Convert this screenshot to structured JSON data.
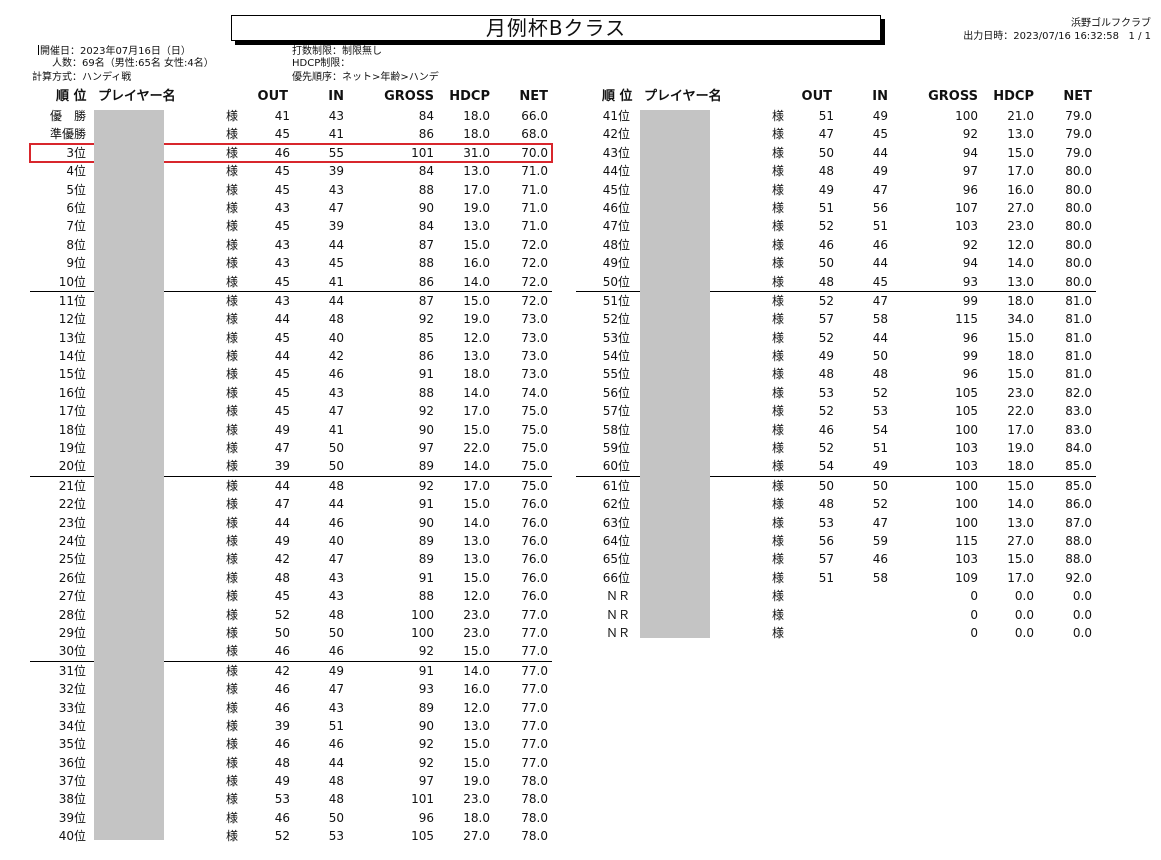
{
  "header": {
    "title": "月例杯Bクラス",
    "club": "浜野ゴルフクラブ",
    "output_label": "出力日時：2023/07/16 16:32:58",
    "page": "1 / 1"
  },
  "meta": {
    "date": "開催日：2023年07月16日（日）",
    "count": "人数：69名（男性:65名 女性:4名）",
    "method": "計算方式：ハンディ戦",
    "stroke_limit": "打数制限：制限無し",
    "hdcp_limit": "HDCP制限：",
    "priority": "優先順序：ネット>年齢>ハンデ"
  },
  "columns": {
    "rank": "順 位",
    "name": "プレイヤー名",
    "out": "OUT",
    "in": "IN",
    "gross": "GROSS",
    "hdcp": "HDCP",
    "net": "NET"
  },
  "honorific": "様",
  "left_rows": [
    {
      "rank": "優　勝",
      "out": "41",
      "in": "43",
      "gross": "84",
      "hdcp": "18.0",
      "net": "66.0"
    },
    {
      "rank": "準優勝",
      "out": "45",
      "in": "41",
      "gross": "86",
      "hdcp": "18.0",
      "net": "68.0"
    },
    {
      "rank": "3位",
      "out": "46",
      "in": "55",
      "gross": "101",
      "hdcp": "31.0",
      "net": "70.0"
    },
    {
      "rank": "4位",
      "out": "45",
      "in": "39",
      "gross": "84",
      "hdcp": "13.0",
      "net": "71.0"
    },
    {
      "rank": "5位",
      "out": "45",
      "in": "43",
      "gross": "88",
      "hdcp": "17.0",
      "net": "71.0"
    },
    {
      "rank": "6位",
      "out": "43",
      "in": "47",
      "gross": "90",
      "hdcp": "19.0",
      "net": "71.0"
    },
    {
      "rank": "7位",
      "out": "45",
      "in": "39",
      "gross": "84",
      "hdcp": "13.0",
      "net": "71.0"
    },
    {
      "rank": "8位",
      "out": "43",
      "in": "44",
      "gross": "87",
      "hdcp": "15.0",
      "net": "72.0"
    },
    {
      "rank": "9位",
      "out": "43",
      "in": "45",
      "gross": "88",
      "hdcp": "16.0",
      "net": "72.0"
    },
    {
      "rank": "10位",
      "out": "45",
      "in": "41",
      "gross": "86",
      "hdcp": "14.0",
      "net": "72.0"
    },
    {
      "rank": "11位",
      "out": "43",
      "in": "44",
      "gross": "87",
      "hdcp": "15.0",
      "net": "72.0"
    },
    {
      "rank": "12位",
      "out": "44",
      "in": "48",
      "gross": "92",
      "hdcp": "19.0",
      "net": "73.0"
    },
    {
      "rank": "13位",
      "out": "45",
      "in": "40",
      "gross": "85",
      "hdcp": "12.0",
      "net": "73.0"
    },
    {
      "rank": "14位",
      "out": "44",
      "in": "42",
      "gross": "86",
      "hdcp": "13.0",
      "net": "73.0"
    },
    {
      "rank": "15位",
      "out": "45",
      "in": "46",
      "gross": "91",
      "hdcp": "18.0",
      "net": "73.0"
    },
    {
      "rank": "16位",
      "out": "45",
      "in": "43",
      "gross": "88",
      "hdcp": "14.0",
      "net": "74.0"
    },
    {
      "rank": "17位",
      "out": "45",
      "in": "47",
      "gross": "92",
      "hdcp": "17.0",
      "net": "75.0"
    },
    {
      "rank": "18位",
      "out": "49",
      "in": "41",
      "gross": "90",
      "hdcp": "15.0",
      "net": "75.0"
    },
    {
      "rank": "19位",
      "out": "47",
      "in": "50",
      "gross": "97",
      "hdcp": "22.0",
      "net": "75.0"
    },
    {
      "rank": "20位",
      "out": "39",
      "in": "50",
      "gross": "89",
      "hdcp": "14.0",
      "net": "75.0"
    },
    {
      "rank": "21位",
      "out": "44",
      "in": "48",
      "gross": "92",
      "hdcp": "17.0",
      "net": "75.0"
    },
    {
      "rank": "22位",
      "out": "47",
      "in": "44",
      "gross": "91",
      "hdcp": "15.0",
      "net": "76.0"
    },
    {
      "rank": "23位",
      "out": "44",
      "in": "46",
      "gross": "90",
      "hdcp": "14.0",
      "net": "76.0"
    },
    {
      "rank": "24位",
      "out": "49",
      "in": "40",
      "gross": "89",
      "hdcp": "13.0",
      "net": "76.0"
    },
    {
      "rank": "25位",
      "out": "42",
      "in": "47",
      "gross": "89",
      "hdcp": "13.0",
      "net": "76.0"
    },
    {
      "rank": "26位",
      "out": "48",
      "in": "43",
      "gross": "91",
      "hdcp": "15.0",
      "net": "76.0"
    },
    {
      "rank": "27位",
      "out": "45",
      "in": "43",
      "gross": "88",
      "hdcp": "12.0",
      "net": "76.0"
    },
    {
      "rank": "28位",
      "out": "52",
      "in": "48",
      "gross": "100",
      "hdcp": "23.0",
      "net": "77.0"
    },
    {
      "rank": "29位",
      "out": "50",
      "in": "50",
      "gross": "100",
      "hdcp": "23.0",
      "net": "77.0"
    },
    {
      "rank": "30位",
      "out": "46",
      "in": "46",
      "gross": "92",
      "hdcp": "15.0",
      "net": "77.0"
    },
    {
      "rank": "31位",
      "out": "42",
      "in": "49",
      "gross": "91",
      "hdcp": "14.0",
      "net": "77.0"
    },
    {
      "rank": "32位",
      "out": "46",
      "in": "47",
      "gross": "93",
      "hdcp": "16.0",
      "net": "77.0"
    },
    {
      "rank": "33位",
      "out": "46",
      "in": "43",
      "gross": "89",
      "hdcp": "12.0",
      "net": "77.0"
    },
    {
      "rank": "34位",
      "out": "39",
      "in": "51",
      "gross": "90",
      "hdcp": "13.0",
      "net": "77.0"
    },
    {
      "rank": "35位",
      "out": "46",
      "in": "46",
      "gross": "92",
      "hdcp": "15.0",
      "net": "77.0"
    },
    {
      "rank": "36位",
      "out": "48",
      "in": "44",
      "gross": "92",
      "hdcp": "15.0",
      "net": "77.0"
    },
    {
      "rank": "37位",
      "out": "49",
      "in": "48",
      "gross": "97",
      "hdcp": "19.0",
      "net": "78.0"
    },
    {
      "rank": "38位",
      "out": "53",
      "in": "48",
      "gross": "101",
      "hdcp": "23.0",
      "net": "78.0"
    },
    {
      "rank": "39位",
      "out": "46",
      "in": "50",
      "gross": "96",
      "hdcp": "18.0",
      "net": "78.0"
    },
    {
      "rank": "40位",
      "out": "52",
      "in": "53",
      "gross": "105",
      "hdcp": "27.0",
      "net": "78.0"
    }
  ],
  "right_rows": [
    {
      "rank": "41位",
      "out": "51",
      "in": "49",
      "gross": "100",
      "hdcp": "21.0",
      "net": "79.0"
    },
    {
      "rank": "42位",
      "out": "47",
      "in": "45",
      "gross": "92",
      "hdcp": "13.0",
      "net": "79.0"
    },
    {
      "rank": "43位",
      "out": "50",
      "in": "44",
      "gross": "94",
      "hdcp": "15.0",
      "net": "79.0"
    },
    {
      "rank": "44位",
      "out": "48",
      "in": "49",
      "gross": "97",
      "hdcp": "17.0",
      "net": "80.0"
    },
    {
      "rank": "45位",
      "out": "49",
      "in": "47",
      "gross": "96",
      "hdcp": "16.0",
      "net": "80.0"
    },
    {
      "rank": "46位",
      "out": "51",
      "in": "56",
      "gross": "107",
      "hdcp": "27.0",
      "net": "80.0"
    },
    {
      "rank": "47位",
      "out": "52",
      "in": "51",
      "gross": "103",
      "hdcp": "23.0",
      "net": "80.0"
    },
    {
      "rank": "48位",
      "out": "46",
      "in": "46",
      "gross": "92",
      "hdcp": "12.0",
      "net": "80.0"
    },
    {
      "rank": "49位",
      "out": "50",
      "in": "44",
      "gross": "94",
      "hdcp": "14.0",
      "net": "80.0"
    },
    {
      "rank": "50位",
      "out": "48",
      "in": "45",
      "gross": "93",
      "hdcp": "13.0",
      "net": "80.0"
    },
    {
      "rank": "51位",
      "out": "52",
      "in": "47",
      "gross": "99",
      "hdcp": "18.0",
      "net": "81.0"
    },
    {
      "rank": "52位",
      "out": "57",
      "in": "58",
      "gross": "115",
      "hdcp": "34.0",
      "net": "81.0"
    },
    {
      "rank": "53位",
      "out": "52",
      "in": "44",
      "gross": "96",
      "hdcp": "15.0",
      "net": "81.0"
    },
    {
      "rank": "54位",
      "out": "49",
      "in": "50",
      "gross": "99",
      "hdcp": "18.0",
      "net": "81.0"
    },
    {
      "rank": "55位",
      "out": "48",
      "in": "48",
      "gross": "96",
      "hdcp": "15.0",
      "net": "81.0"
    },
    {
      "rank": "56位",
      "out": "53",
      "in": "52",
      "gross": "105",
      "hdcp": "23.0",
      "net": "82.0"
    },
    {
      "rank": "57位",
      "out": "52",
      "in": "53",
      "gross": "105",
      "hdcp": "22.0",
      "net": "83.0"
    },
    {
      "rank": "58位",
      "out": "46",
      "in": "54",
      "gross": "100",
      "hdcp": "17.0",
      "net": "83.0"
    },
    {
      "rank": "59位",
      "out": "52",
      "in": "51",
      "gross": "103",
      "hdcp": "19.0",
      "net": "84.0"
    },
    {
      "rank": "60位",
      "out": "54",
      "in": "49",
      "gross": "103",
      "hdcp": "18.0",
      "net": "85.0"
    },
    {
      "rank": "61位",
      "out": "50",
      "in": "50",
      "gross": "100",
      "hdcp": "15.0",
      "net": "85.0"
    },
    {
      "rank": "62位",
      "out": "48",
      "in": "52",
      "gross": "100",
      "hdcp": "14.0",
      "net": "86.0"
    },
    {
      "rank": "63位",
      "out": "53",
      "in": "47",
      "gross": "100",
      "hdcp": "13.0",
      "net": "87.0"
    },
    {
      "rank": "64位",
      "out": "56",
      "in": "59",
      "gross": "115",
      "hdcp": "27.0",
      "net": "88.0"
    },
    {
      "rank": "65位",
      "out": "57",
      "in": "46",
      "gross": "103",
      "hdcp": "15.0",
      "net": "88.0"
    },
    {
      "rank": "66位",
      "out": "51",
      "in": "58",
      "gross": "109",
      "hdcp": "17.0",
      "net": "92.0"
    },
    {
      "rank": "ＮＲ",
      "out": "",
      "in": "",
      "gross": "0",
      "hdcp": "0.0",
      "net": "0.0"
    },
    {
      "rank": "ＮＲ",
      "out": "",
      "in": "",
      "gross": "0",
      "hdcp": "0.0",
      "net": "0.0"
    },
    {
      "rank": "ＮＲ",
      "out": "",
      "in": "",
      "gross": "0",
      "hdcp": "0.0",
      "net": "0.0"
    }
  ]
}
